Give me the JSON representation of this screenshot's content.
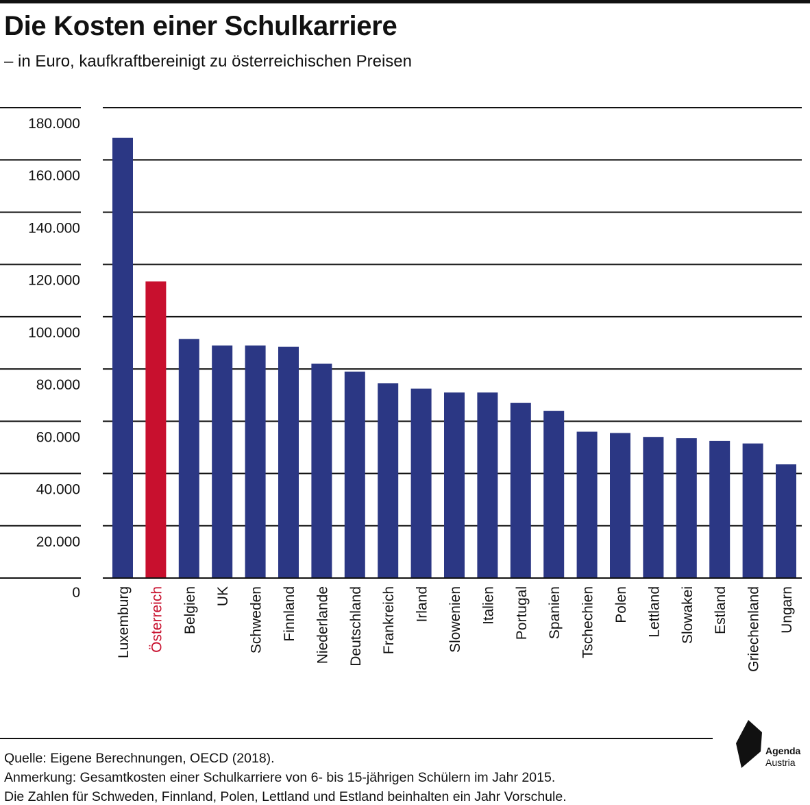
{
  "header": {
    "title": "Die Kosten einer Schulkarriere",
    "subtitle": "– in Euro, kaufkraftbereinigt zu österreichischen Preisen"
  },
  "colors": {
    "bar": "#2b3784",
    "highlight": "#c8102e",
    "grid": "#111111"
  },
  "chart_data": {
    "type": "bar",
    "title": "Die Kosten einer Schulkarriere",
    "subtitle": "– in Euro, kaufkraftbereinigt zu österreichischen Preisen",
    "categories": [
      "Luxemburg",
      "Österreich",
      "Belgien",
      "UK",
      "Schweden",
      "Finnland",
      "Niederlande",
      "Deutschland",
      "Frankreich",
      "Irland",
      "Slowenien",
      "Italien",
      "Portugal",
      "Spanien",
      "Tschechien",
      "Polen",
      "Lettland",
      "Slowakei",
      "Estland",
      "Griechenland",
      "Ungarn"
    ],
    "values": [
      168500,
      113500,
      91500,
      89000,
      89000,
      88500,
      82000,
      79000,
      74500,
      72500,
      71000,
      71000,
      67000,
      64000,
      56000,
      55500,
      54000,
      53500,
      52500,
      51500,
      43500
    ],
    "highlight": "Österreich",
    "ylim": [
      0,
      180000
    ],
    "yticks": [
      0,
      20000,
      40000,
      60000,
      80000,
      100000,
      120000,
      140000,
      160000,
      180000
    ],
    "ytick_labels": [
      "0",
      "20.000",
      "40.000",
      "60.000",
      "80.000",
      "100.000",
      "120.000",
      "140.000",
      "160.000",
      "180.000"
    ],
    "xlabel": "",
    "ylabel": "",
    "grid": true
  },
  "footer": {
    "source": "Quelle: Eigene Berechnungen, OECD (2018).",
    "note1": "Anmerkung: Gesamtkosten einer Schulkarriere von 6- bis 15-jährigen Schülern im Jahr 2015.",
    "note2": "Die Zahlen für Schweden, Finnland, Polen, Lettland und Estland beinhalten ein Jahr Vorschule."
  },
  "logo": {
    "line1": "Agenda",
    "line2": "Austria"
  }
}
